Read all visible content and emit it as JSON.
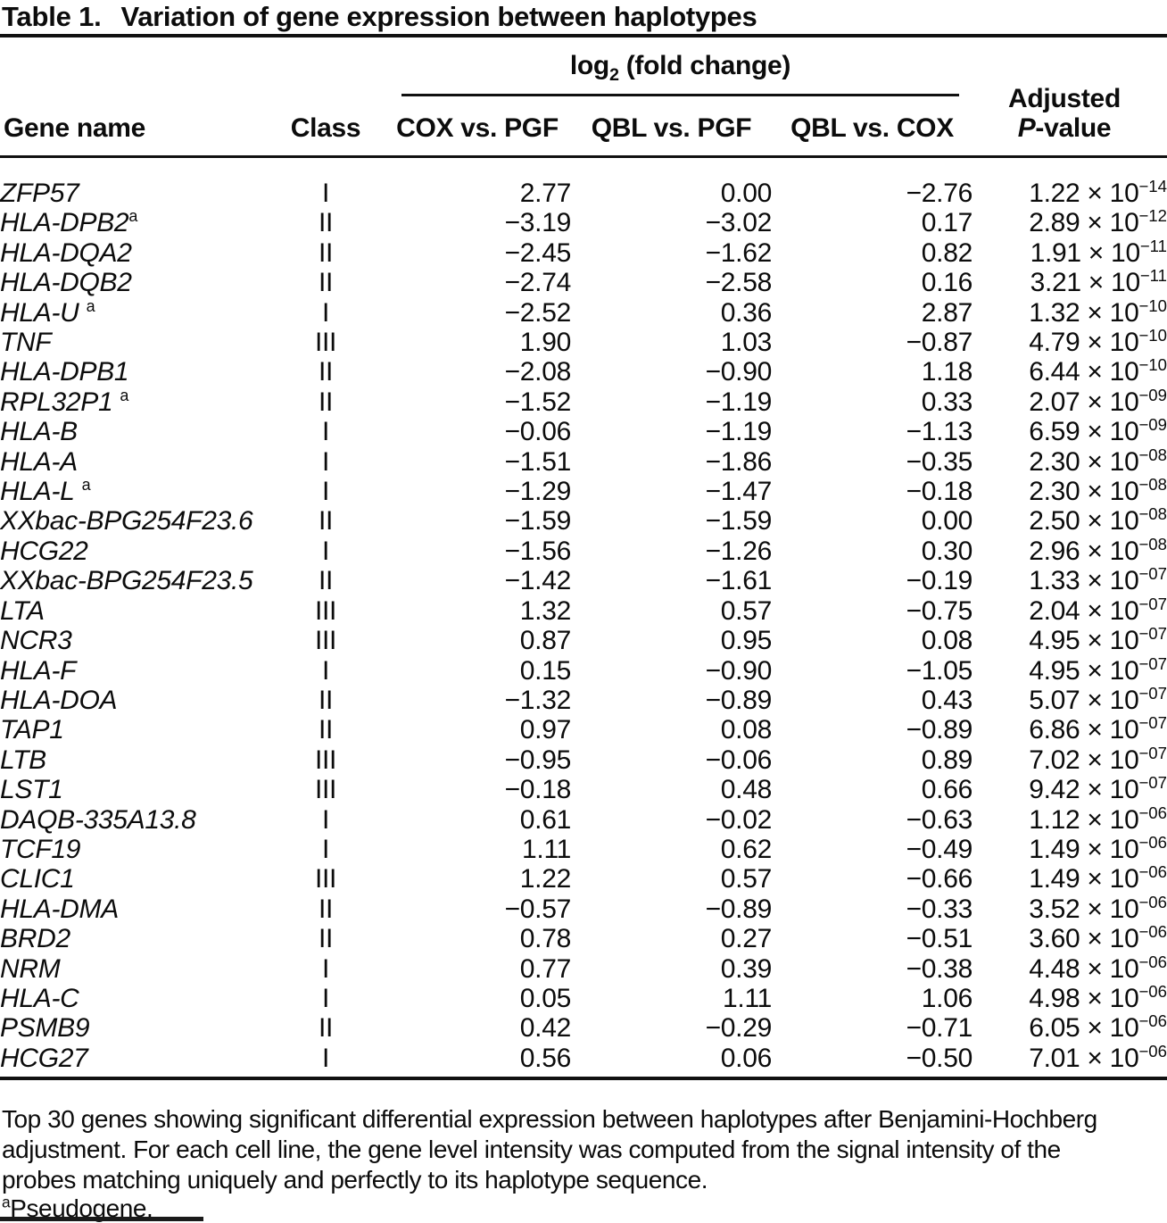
{
  "title": {
    "label": "Table 1.",
    "text": "Variation of gene expression between haplotypes"
  },
  "header": {
    "gene": "Gene name",
    "class": "Class",
    "log_prefix": "log",
    "log_sub": "2",
    "log_suffix": " (fold change)",
    "cox_pgf": "COX vs. PGF",
    "qbl_pgf": "QBL vs. PGF",
    "qbl_cox": "QBL vs. COX",
    "adjusted_line1": "Adjusted",
    "adjusted_p": "P",
    "adjusted_rest": "-value"
  },
  "table": {
    "times_ten": " × 10",
    "rows": [
      {
        "gene": "ZFP57",
        "marker": "",
        "gap": false,
        "class": "I",
        "cox_pgf": "2.77",
        "qbl_pgf": "0.00",
        "qbl_cox": "−2.76",
        "p_mantissa": "1.22",
        "p_exponent": "−14"
      },
      {
        "gene": "HLA-DPB2",
        "marker": "a",
        "gap": false,
        "class": "II",
        "cox_pgf": "−3.19",
        "qbl_pgf": "−3.02",
        "qbl_cox": "0.17",
        "p_mantissa": "2.89",
        "p_exponent": "−12"
      },
      {
        "gene": "HLA-DQA2",
        "marker": "",
        "gap": false,
        "class": "II",
        "cox_pgf": "−2.45",
        "qbl_pgf": "−1.62",
        "qbl_cox": "0.82",
        "p_mantissa": "1.91",
        "p_exponent": "−11"
      },
      {
        "gene": "HLA-DQB2",
        "marker": "",
        "gap": false,
        "class": "II",
        "cox_pgf": "−2.74",
        "qbl_pgf": "−2.58",
        "qbl_cox": "0.16",
        "p_mantissa": "3.21",
        "p_exponent": "−11"
      },
      {
        "gene": "HLA-U",
        "marker": "a",
        "gap": true,
        "class": "I",
        "cox_pgf": "−2.52",
        "qbl_pgf": "0.36",
        "qbl_cox": "2.87",
        "p_mantissa": "1.32",
        "p_exponent": "−10"
      },
      {
        "gene": "TNF",
        "marker": "",
        "gap": false,
        "class": "III",
        "cox_pgf": "1.90",
        "qbl_pgf": "1.03",
        "qbl_cox": "−0.87",
        "p_mantissa": "4.79",
        "p_exponent": "−10"
      },
      {
        "gene": "HLA-DPB1",
        "marker": "",
        "gap": false,
        "class": "II",
        "cox_pgf": "−2.08",
        "qbl_pgf": "−0.90",
        "qbl_cox": "1.18",
        "p_mantissa": "6.44",
        "p_exponent": "−10"
      },
      {
        "gene": "RPL32P1",
        "marker": "a",
        "gap": true,
        "class": "II",
        "cox_pgf": "−1.52",
        "qbl_pgf": "−1.19",
        "qbl_cox": "0.33",
        "p_mantissa": "2.07",
        "p_exponent": "−09"
      },
      {
        "gene": "HLA-B",
        "marker": "",
        "gap": false,
        "class": "I",
        "cox_pgf": "−0.06",
        "qbl_pgf": "−1.19",
        "qbl_cox": "−1.13",
        "p_mantissa": "6.59",
        "p_exponent": "−09"
      },
      {
        "gene": "HLA-A",
        "marker": "",
        "gap": false,
        "class": "I",
        "cox_pgf": "−1.51",
        "qbl_pgf": "−1.86",
        "qbl_cox": "−0.35",
        "p_mantissa": "2.30",
        "p_exponent": "−08"
      },
      {
        "gene": "HLA-L",
        "marker": "a",
        "gap": true,
        "class": "I",
        "cox_pgf": "−1.29",
        "qbl_pgf": "−1.47",
        "qbl_cox": "−0.18",
        "p_mantissa": "2.30",
        "p_exponent": "−08"
      },
      {
        "gene": "XXbac-BPG254F23.6",
        "marker": "",
        "gap": false,
        "class": "II",
        "cox_pgf": "−1.59",
        "qbl_pgf": "−1.59",
        "qbl_cox": "0.00",
        "p_mantissa": "2.50",
        "p_exponent": "−08"
      },
      {
        "gene": "HCG22",
        "marker": "",
        "gap": false,
        "class": "I",
        "cox_pgf": "−1.56",
        "qbl_pgf": "−1.26",
        "qbl_cox": "0.30",
        "p_mantissa": "2.96",
        "p_exponent": "−08"
      },
      {
        "gene": "XXbac-BPG254F23.5",
        "marker": "",
        "gap": false,
        "class": "II",
        "cox_pgf": "−1.42",
        "qbl_pgf": "−1.61",
        "qbl_cox": "−0.19",
        "p_mantissa": "1.33",
        "p_exponent": "−07"
      },
      {
        "gene": "LTA",
        "marker": "",
        "gap": false,
        "class": "III",
        "cox_pgf": "1.32",
        "qbl_pgf": "0.57",
        "qbl_cox": "−0.75",
        "p_mantissa": "2.04",
        "p_exponent": "−07"
      },
      {
        "gene": "NCR3",
        "marker": "",
        "gap": false,
        "class": "III",
        "cox_pgf": "0.87",
        "qbl_pgf": "0.95",
        "qbl_cox": "0.08",
        "p_mantissa": "4.95",
        "p_exponent": "−07"
      },
      {
        "gene": "HLA-F",
        "marker": "",
        "gap": false,
        "class": "I",
        "cox_pgf": "0.15",
        "qbl_pgf": "−0.90",
        "qbl_cox": "−1.05",
        "p_mantissa": "4.95",
        "p_exponent": "−07"
      },
      {
        "gene": "HLA-DOA",
        "marker": "",
        "gap": false,
        "class": "II",
        "cox_pgf": "−1.32",
        "qbl_pgf": "−0.89",
        "qbl_cox": "0.43",
        "p_mantissa": "5.07",
        "p_exponent": "−07"
      },
      {
        "gene": "TAP1",
        "marker": "",
        "gap": false,
        "class": "II",
        "cox_pgf": "0.97",
        "qbl_pgf": "0.08",
        "qbl_cox": "−0.89",
        "p_mantissa": "6.86",
        "p_exponent": "−07"
      },
      {
        "gene": "LTB",
        "marker": "",
        "gap": false,
        "class": "III",
        "cox_pgf": "−0.95",
        "qbl_pgf": "−0.06",
        "qbl_cox": "0.89",
        "p_mantissa": "7.02",
        "p_exponent": "−07"
      },
      {
        "gene": "LST1",
        "marker": "",
        "gap": false,
        "class": "III",
        "cox_pgf": "−0.18",
        "qbl_pgf": "0.48",
        "qbl_cox": "0.66",
        "p_mantissa": "9.42",
        "p_exponent": "−07"
      },
      {
        "gene": "DAQB-335A13.8",
        "marker": "",
        "gap": false,
        "class": "I",
        "cox_pgf": "0.61",
        "qbl_pgf": "−0.02",
        "qbl_cox": "−0.63",
        "p_mantissa": "1.12",
        "p_exponent": "−06"
      },
      {
        "gene": "TCF19",
        "marker": "",
        "gap": false,
        "class": "I",
        "cox_pgf": "1.11",
        "qbl_pgf": "0.62",
        "qbl_cox": "−0.49",
        "p_mantissa": "1.49",
        "p_exponent": "−06"
      },
      {
        "gene": "CLIC1",
        "marker": "",
        "gap": false,
        "class": "III",
        "cox_pgf": "1.22",
        "qbl_pgf": "0.57",
        "qbl_cox": "−0.66",
        "p_mantissa": "1.49",
        "p_exponent": "−06"
      },
      {
        "gene": "HLA-DMA",
        "marker": "",
        "gap": false,
        "class": "II",
        "cox_pgf": "−0.57",
        "qbl_pgf": "−0.89",
        "qbl_cox": "−0.33",
        "p_mantissa": "3.52",
        "p_exponent": "−06"
      },
      {
        "gene": "BRD2",
        "marker": "",
        "gap": false,
        "class": "II",
        "cox_pgf": "0.78",
        "qbl_pgf": "0.27",
        "qbl_cox": "−0.51",
        "p_mantissa": "3.60",
        "p_exponent": "−06"
      },
      {
        "gene": "NRM",
        "marker": "",
        "gap": false,
        "class": "I",
        "cox_pgf": "0.77",
        "qbl_pgf": "0.39",
        "qbl_cox": "−0.38",
        "p_mantissa": "4.48",
        "p_exponent": "−06"
      },
      {
        "gene": "HLA-C",
        "marker": "",
        "gap": false,
        "class": "I",
        "cox_pgf": "0.05",
        "qbl_pgf": "1.11",
        "qbl_cox": "1.06",
        "p_mantissa": "4.98",
        "p_exponent": "−06"
      },
      {
        "gene": "PSMB9",
        "marker": "",
        "gap": false,
        "class": "II",
        "cox_pgf": "0.42",
        "qbl_pgf": "−0.29",
        "qbl_cox": "−0.71",
        "p_mantissa": "6.05",
        "p_exponent": "−06"
      },
      {
        "gene": "HCG27",
        "marker": "",
        "gap": false,
        "class": "I",
        "cox_pgf": "0.56",
        "qbl_pgf": "0.06",
        "qbl_cox": "−0.50",
        "p_mantissa": "7.01",
        "p_exponent": "−06"
      }
    ]
  },
  "footer": {
    "line1": "Top 30 genes showing significant differential expression between haplotypes after Benjamini-Hochberg",
    "line2": "adjustment. For each cell line, the gene level intensity was computed from the signal intensity of the",
    "line3": "probes matching uniquely and perfectly to its haplotype sequence.",
    "footnote_marker": "a",
    "footnote_text": "Pseudogene."
  }
}
